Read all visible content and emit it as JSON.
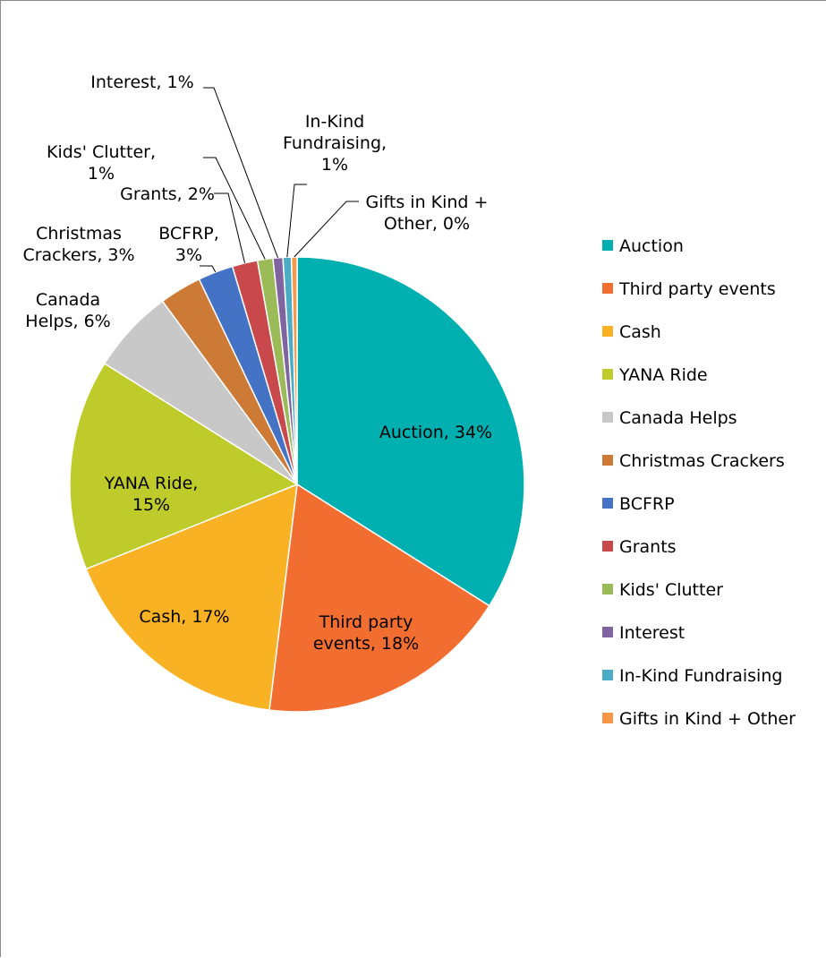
{
  "chart_data": {
    "type": "pie",
    "title": "",
    "legend_position": "right",
    "slices": [
      {
        "name": "Auction",
        "value": 34,
        "color": "#00B0B0",
        "label_lines": [
          "Auction, 34%"
        ]
      },
      {
        "name": "Third party events",
        "value": 18,
        "color": "#F26E30",
        "label_lines": [
          "Third party",
          "events, 18%"
        ]
      },
      {
        "name": "Cash",
        "value": 17,
        "color": "#F8B224",
        "label_lines": [
          "Cash, 17%"
        ]
      },
      {
        "name": "YANA Ride",
        "value": 15,
        "color": "#BFCB2A",
        "label_lines": [
          "YANA Ride,",
          "15%"
        ]
      },
      {
        "name": "Canada Helps",
        "value": 6,
        "color": "#C8C8C8",
        "label_lines": [
          "Canada",
          "Helps, 6%"
        ]
      },
      {
        "name": "Christmas Crackers",
        "value": 3,
        "color": "#CC7A36",
        "label_lines": [
          "Christmas",
          "Crackers, 3%"
        ]
      },
      {
        "name": "BCFRP",
        "value": 2.5,
        "color": "#4472C4",
        "label_lines": [
          "BCFRP,",
          "3%"
        ]
      },
      {
        "name": "Grants",
        "value": 1.8,
        "color": "#C9484B",
        "label_lines": [
          "Grants, 2%"
        ]
      },
      {
        "name": "Kids' Clutter",
        "value": 1.1,
        "color": "#9BBB59",
        "label_lines": [
          "Kids' Clutter,",
          "1%"
        ]
      },
      {
        "name": "Interest",
        "value": 0.7,
        "color": "#8064A2",
        "label_lines": [
          "Interest, 1%"
        ]
      },
      {
        "name": "In-Kind Fundraising",
        "value": 0.6,
        "color": "#4BACC6",
        "label_lines": [
          "In-Kind",
          "Fundraising,",
          "1%"
        ]
      },
      {
        "name": "Gifts in Kind + Other",
        "value": 0.4,
        "color": "#F79646",
        "label_lines": [
          "Gifts in Kind +",
          "Other, 0%"
        ]
      }
    ]
  }
}
